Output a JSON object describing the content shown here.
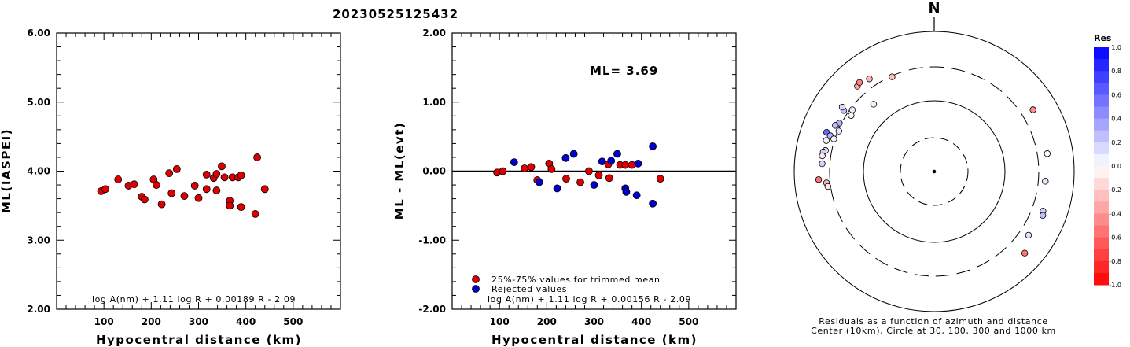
{
  "title": "20230525125432",
  "chart_data": [
    {
      "type": "scatter",
      "xlabel": "Hypocentral distance (km)",
      "ylabel": "ML(IASPEI)",
      "x_ticks": [
        "100",
        "200",
        "300",
        "400",
        "500"
      ],
      "y_ticks": [
        "2.00",
        "3.00",
        "4.00",
        "5.00",
        "6.00"
      ],
      "xlim": [
        0,
        600
      ],
      "ylim": [
        2,
        6
      ],
      "formula": "log A(nm) + 1.11 log R + 0.00189 R - 2.09",
      "marker_color": "#dd0000",
      "points": [
        [
          94,
          3.71
        ],
        [
          103,
          3.74
        ],
        [
          130,
          3.88
        ],
        [
          152,
          3.79
        ],
        [
          164,
          3.81
        ],
        [
          180,
          3.63
        ],
        [
          186,
          3.59
        ],
        [
          205,
          3.88
        ],
        [
          211,
          3.8
        ],
        [
          222,
          3.52
        ],
        [
          238,
          3.97
        ],
        [
          243,
          3.68
        ],
        [
          254,
          4.03
        ],
        [
          270,
          3.64
        ],
        [
          292,
          3.79
        ],
        [
          300,
          3.61
        ],
        [
          317,
          3.74
        ],
        [
          317,
          3.95
        ],
        [
          332,
          3.9
        ],
        [
          338,
          3.72
        ],
        [
          338,
          3.96
        ],
        [
          349,
          4.07
        ],
        [
          355,
          3.91
        ],
        [
          366,
          3.57
        ],
        [
          366,
          3.5
        ],
        [
          372,
          3.91
        ],
        [
          384,
          3.91
        ],
        [
          390,
          3.94
        ],
        [
          390,
          3.48
        ],
        [
          420,
          3.38
        ],
        [
          424,
          4.2
        ],
        [
          440,
          3.74
        ]
      ]
    },
    {
      "type": "scatter",
      "xlabel": "Hypocentral distance (km)",
      "ylabel": "ML - ML(evt)",
      "x_ticks": [
        "100",
        "200",
        "300",
        "400",
        "500"
      ],
      "y_ticks": [
        "-2.00",
        "-1.00",
        "0.00",
        "1.00",
        "2.00"
      ],
      "xlim": [
        0,
        600
      ],
      "ylim": [
        -2,
        2
      ],
      "annotation": "ML= 3.69",
      "legend": [
        "25%-75% values for trimmed mean",
        "Rejected values"
      ],
      "formula": "log A(nm) + 1.11 log R + 0.00156 R - 2.09",
      "colors": {
        "trimmed": "#dd0000",
        "rejected": "#0000cc"
      },
      "series": [
        {
          "name": "25%-75% values for trimmed mean",
          "points": [
            [
              95,
              -0.02
            ],
            [
              107,
              0.0
            ],
            [
              153,
              0.04
            ],
            [
              167,
              0.06
            ],
            [
              180,
              -0.13
            ],
            [
              205,
              0.11
            ],
            [
              210,
              0.03
            ],
            [
              241,
              -0.11
            ],
            [
              271,
              -0.16
            ],
            [
              289,
              0.0
            ],
            [
              310,
              -0.06
            ],
            [
              330,
              0.1
            ],
            [
              332,
              -0.1
            ],
            [
              355,
              0.09
            ],
            [
              366,
              0.09
            ],
            [
              380,
              0.09
            ],
            [
              440,
              -0.11
            ]
          ]
        },
        {
          "name": "Rejected values",
          "points": [
            [
              131,
              0.13
            ],
            [
              184,
              -0.16
            ],
            [
              222,
              -0.25
            ],
            [
              240,
              0.19
            ],
            [
              257,
              0.25
            ],
            [
              300,
              -0.2
            ],
            [
              317,
              0.14
            ],
            [
              336,
              0.15
            ],
            [
              349,
              0.25
            ],
            [
              366,
              -0.25
            ],
            [
              368,
              -0.3
            ],
            [
              390,
              -0.35
            ],
            [
              393,
              0.11
            ],
            [
              424,
              0.36
            ],
            [
              424,
              -0.47
            ]
          ]
        }
      ]
    },
    {
      "type": "polar-scatter",
      "north_label": "N",
      "distance_circles_km": [
        30,
        100,
        300,
        1000
      ],
      "caption": [
        "Residuals as a function of azimuth and distance",
        "Center (10km), Circle at 30, 100, 300 and 1000 km"
      ],
      "colorbar": {
        "label": "Res",
        "ticks": [
          "1.0",
          "0.8",
          "0.6",
          "0.4",
          "0.2",
          "0.0",
          "-0.2",
          "-0.4",
          "-0.6",
          "-0.8",
          "-1.0"
        ],
        "range": [
          -1,
          1
        ],
        "positive_color": "#0000ff",
        "negative_color": "#ff0000"
      },
      "stations": [
        {
          "az": 318,
          "dist_km": 424,
          "res": -0.36
        },
        {
          "az": 320,
          "dist_km": 445,
          "res": -0.5
        },
        {
          "az": 325,
          "dist_km": 400,
          "res": -0.3
        },
        {
          "az": 304,
          "dist_km": 260,
          "res": -0.05
        },
        {
          "az": 307,
          "dist_km": 280,
          "res": 0.08
        },
        {
          "az": 336,
          "dist_km": 290,
          "res": -0.25
        },
        {
          "az": 304,
          "dist_km": 350,
          "res": 0.25
        },
        {
          "az": 305,
          "dist_km": 390,
          "res": 0.15
        },
        {
          "az": 297,
          "dist_km": 320,
          "res": 0.3
        },
        {
          "az": 293,
          "dist_km": 290,
          "res": 0.1
        },
        {
          "az": 295,
          "dist_km": 350,
          "res": 0.25
        },
        {
          "az": 290,
          "dist_km": 420,
          "res": 0.6
        },
        {
          "az": 289,
          "dist_km": 360,
          "res": 0.3
        },
        {
          "az": 288,
          "dist_km": 310,
          "res": 0.05
        },
        {
          "az": 286,
          "dist_km": 390,
          "res": 0.05
        },
        {
          "az": 281,
          "dist_km": 370,
          "res": 0.1
        },
        {
          "az": 280,
          "dist_km": 395,
          "res": 0.18
        },
        {
          "az": 274,
          "dist_km": 390,
          "res": 0.18
        },
        {
          "az": 278,
          "dist_km": 400,
          "res": -0.1
        },
        {
          "az": 266,
          "dist_km": 440,
          "res": -0.55
        },
        {
          "az": 264,
          "dist_km": 340,
          "res": -0.3
        },
        {
          "az": 262,
          "dist_km": 330,
          "res": -0.1
        },
        {
          "az": 58,
          "dist_km": 450,
          "res": -0.45
        },
        {
          "az": 81,
          "dist_km": 420,
          "res": 0.0
        },
        {
          "az": 95,
          "dist_km": 380,
          "res": 0.1
        },
        {
          "az": 110,
          "dist_km": 440,
          "res": 0.18
        },
        {
          "az": 112,
          "dist_km": 460,
          "res": 0.25
        },
        {
          "az": 124,
          "dist_km": 410,
          "res": 0.12
        },
        {
          "az": 132,
          "dist_km": 540,
          "res": -0.55
        },
        {
          "az": 318,
          "dist_km": 190,
          "res": 0.05
        }
      ]
    }
  ]
}
